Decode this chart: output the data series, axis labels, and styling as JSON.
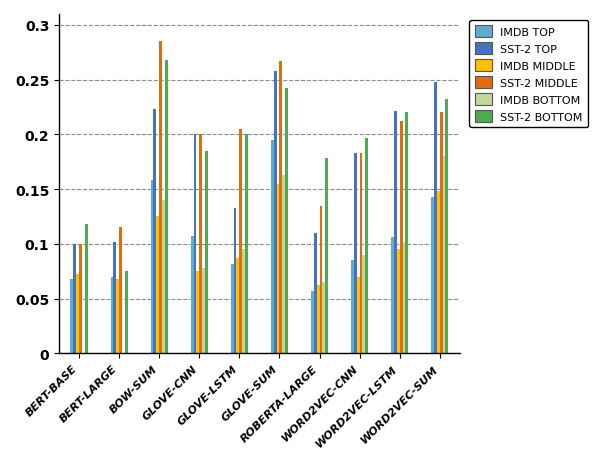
{
  "categories": [
    "BERT-BASE",
    "BERT-LARGE",
    "BOW-SUM",
    "GLOVE-CNN",
    "GLOVE-LSTM",
    "GLOVE-SUM",
    "ROBERTA-LARGE",
    "WORD2VEC-CNN",
    "WORD2VEC-LSTM",
    "WORD2VEC-SUM"
  ],
  "series": {
    "IMDB TOP": [
      0.068,
      0.07,
      0.158,
      0.107,
      0.082,
      0.195,
      0.057,
      0.085,
      0.106,
      0.143
    ],
    "SST-2 TOP": [
      0.1,
      0.102,
      0.223,
      0.2,
      0.133,
      0.258,
      0.11,
      0.183,
      0.221,
      0.248
    ],
    "IMDB MIDDLE": [
      0.072,
      0.068,
      0.125,
      0.075,
      0.087,
      0.155,
      0.062,
      0.07,
      0.095,
      0.148
    ],
    "SST-2 MIDDLE": [
      0.1,
      0.115,
      0.285,
      0.2,
      0.205,
      0.267,
      0.135,
      0.183,
      0.212,
      0.22
    ],
    "IMDB BOTTOM": [
      0.0,
      0.0,
      0.14,
      0.078,
      0.095,
      0.163,
      0.065,
      0.09,
      0.102,
      0.18
    ],
    "SST-2 BOTTOM": [
      0.118,
      0.075,
      0.268,
      0.185,
      0.2,
      0.242,
      0.178,
      0.197,
      0.22,
      0.232
    ]
  },
  "colors": {
    "IMDB TOP": "#5BADD2",
    "SST-2 TOP": "#4472C4",
    "IMDB MIDDLE": "#FFC000",
    "SST-2 MIDDLE": "#E36C09",
    "IMDB BOTTOM": "#C4D79B",
    "SST-2 BOTTOM": "#4EAC4C"
  },
  "ylim": [
    0,
    0.31
  ],
  "yticks": [
    0,
    0.05,
    0.1,
    0.15,
    0.2,
    0.25,
    0.3
  ],
  "ytick_labels": [
    "0",
    "0.05",
    "0.1",
    "0.15",
    "0.2",
    "0.25",
    "0.3"
  ],
  "figsize": [
    6.04,
    4.64
  ],
  "dpi": 100,
  "bar_width": 0.072,
  "legend_order": [
    "IMDB TOP",
    "SST-2 TOP",
    "IMDB MIDDLE",
    "SST-2 MIDDLE",
    "IMDB BOTTOM",
    "SST-2 BOTTOM"
  ]
}
